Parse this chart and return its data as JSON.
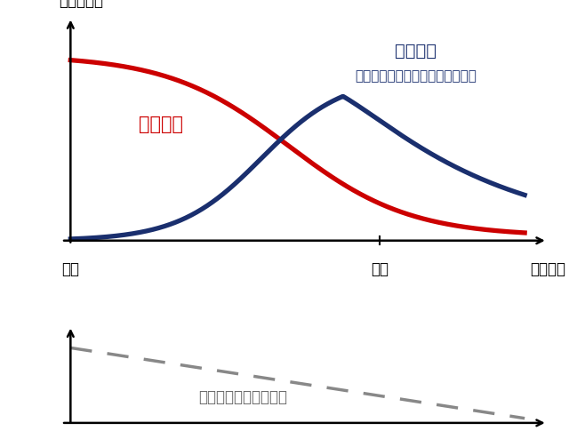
{
  "title_upper": "（資産額）",
  "label_human_capital": "人的資本",
  "label_financial_asset_line1": "金融資産",
  "label_financial_asset_line2": "（預金、債券、株式、不動産等）",
  "label_risk_asset": "リスク性資産配分比率",
  "x_label_left": "就職",
  "x_label_mid": "定年",
  "x_label_right": "（年齢）",
  "color_human": "#cc0000",
  "color_financial": "#1a2f6e",
  "color_dashed": "#888888",
  "background": "#ffffff",
  "figsize": [
    6.4,
    4.94
  ],
  "dpi": 100
}
